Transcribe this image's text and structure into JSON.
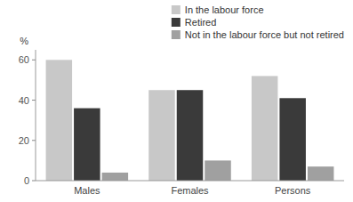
{
  "chart_data": {
    "type": "bar",
    "y_label": "%",
    "categories": [
      "Males",
      "Females",
      "Persons"
    ],
    "series": [
      {
        "name": "In the labour force",
        "color": "#c8c8c8",
        "values": [
          60,
          45,
          52
        ]
      },
      {
        "name": "Retired",
        "color": "#3a3a3a",
        "values": [
          36,
          45,
          41
        ]
      },
      {
        "name": "Not in the labour force but not retired",
        "color": "#a0a0a0",
        "values": [
          4,
          10,
          7
        ]
      }
    ],
    "ylim": [
      0,
      65
    ],
    "yticks": [
      0,
      20,
      40,
      60
    ],
    "grid": false,
    "legend": "upper right"
  }
}
